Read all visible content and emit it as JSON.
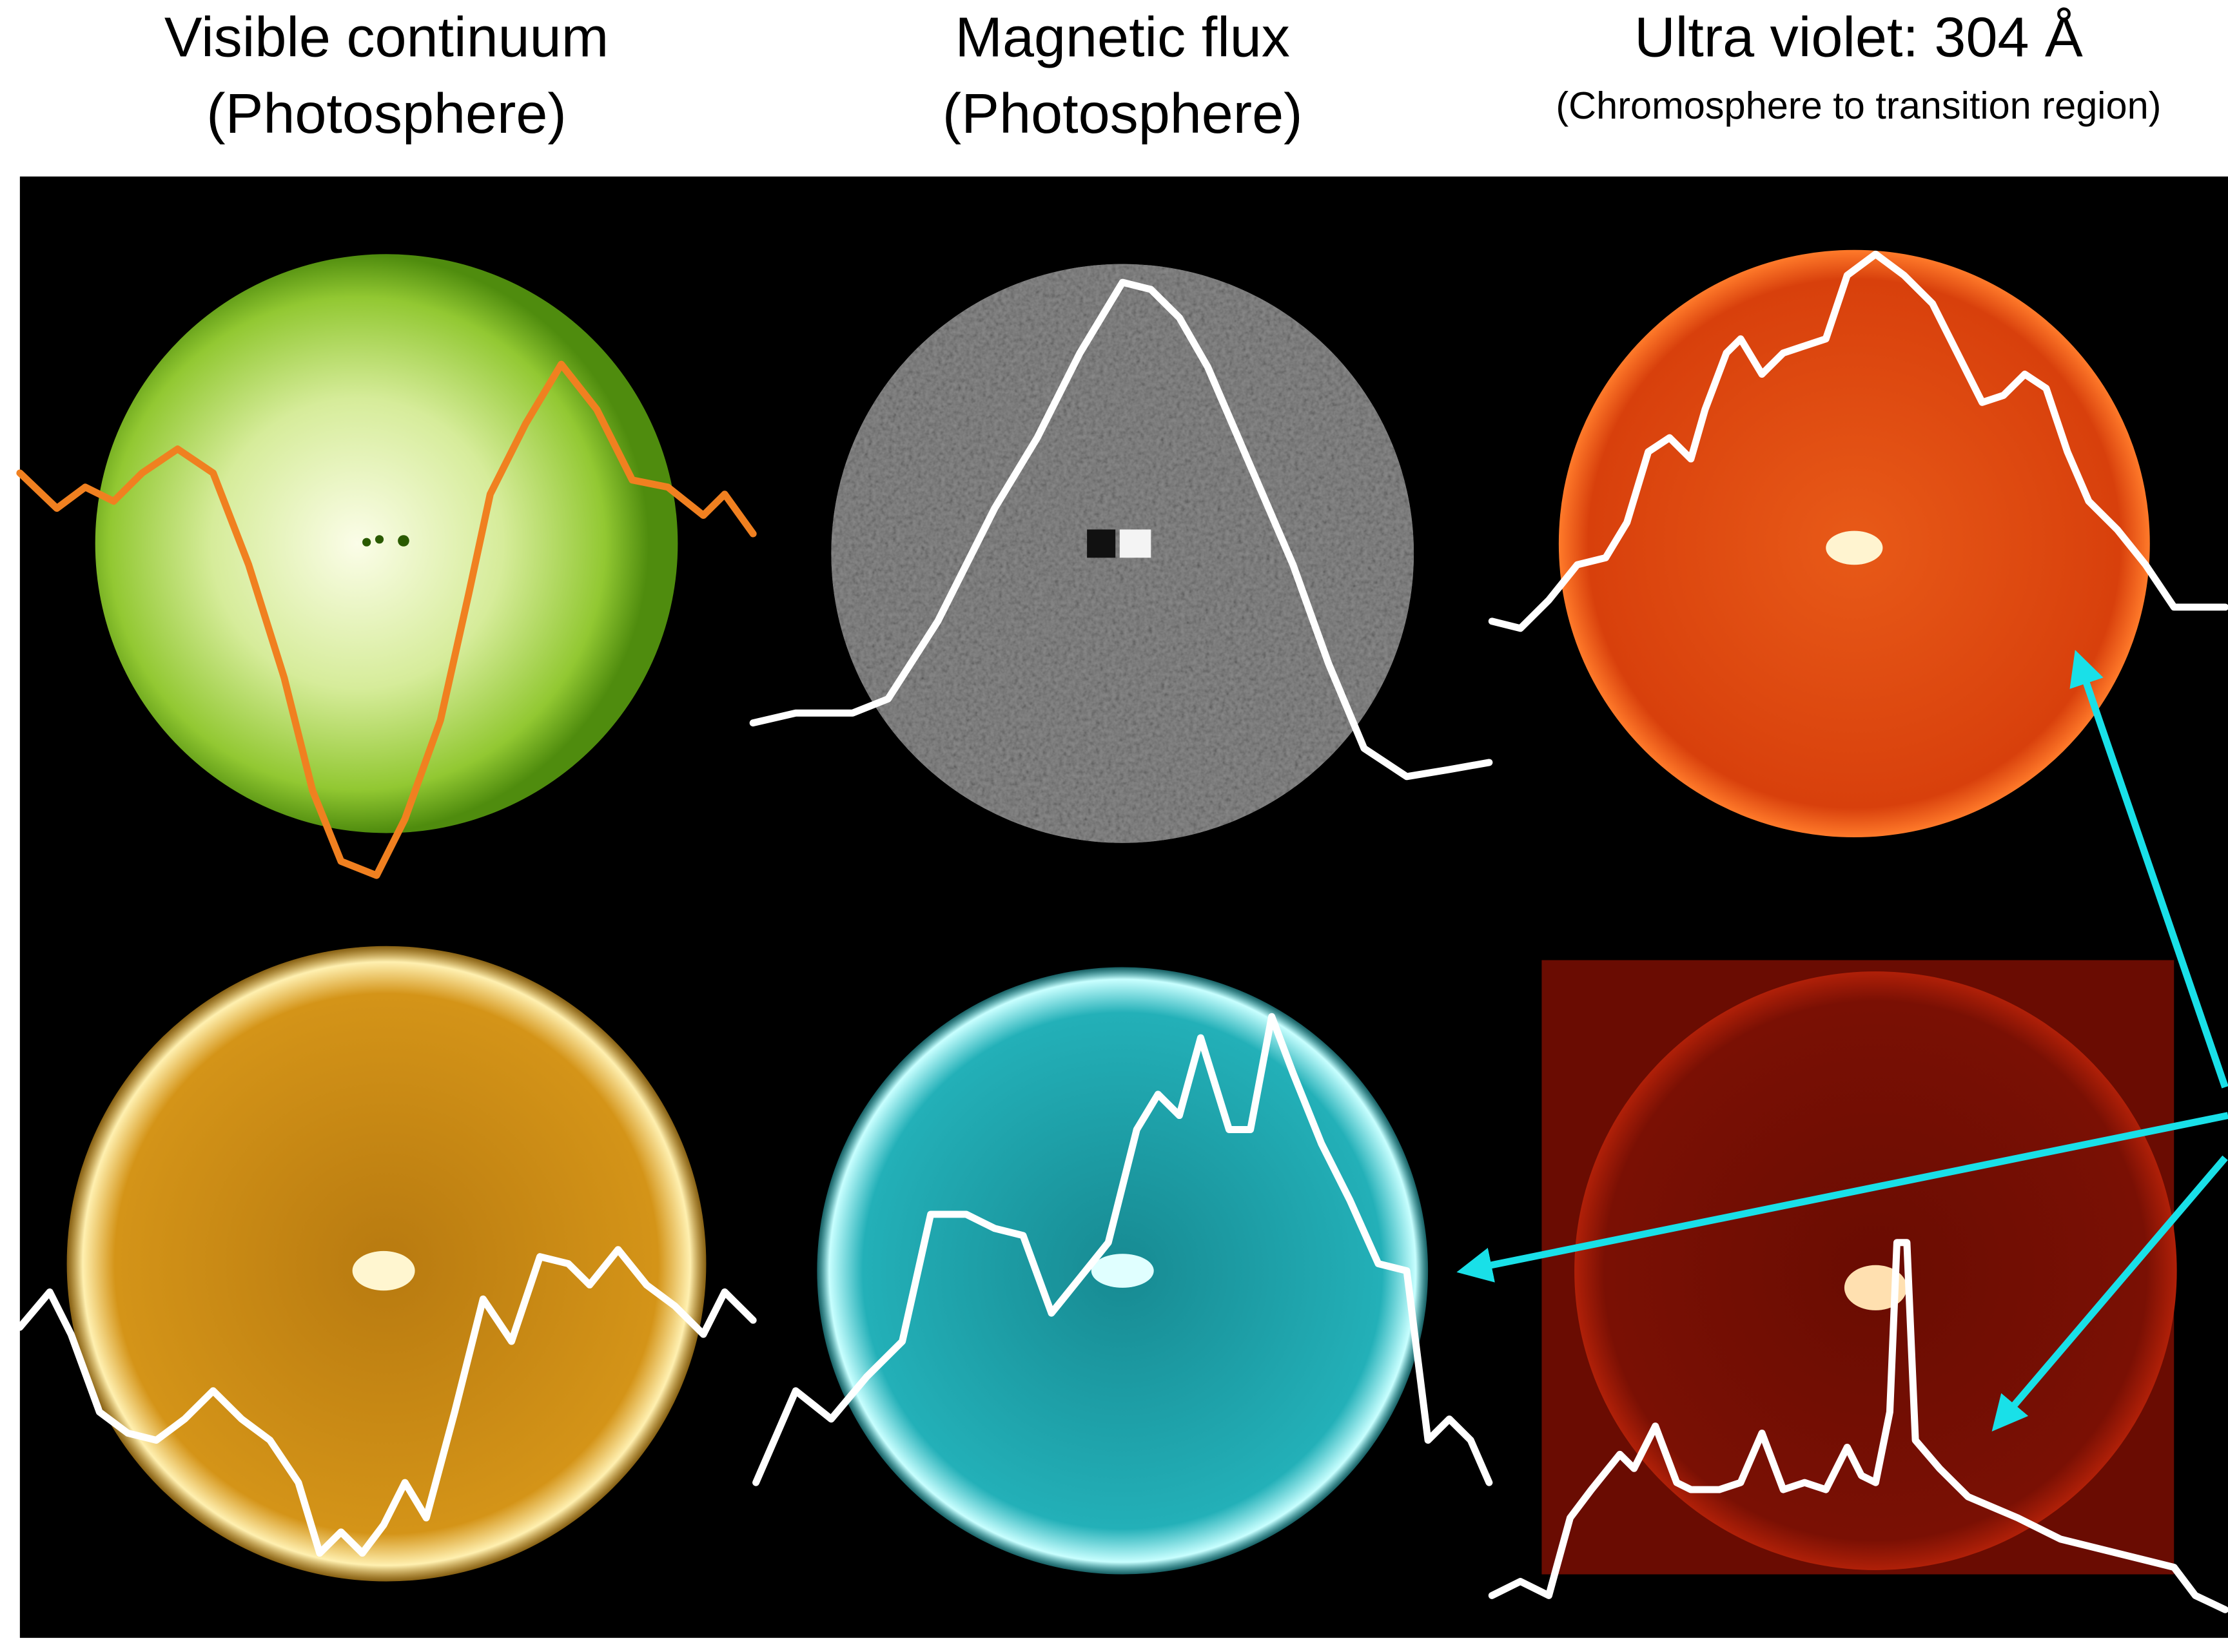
{
  "panels": [
    {
      "title": "Visible continuum",
      "subtitle": "(Photosphere)"
    },
    {
      "title": "Magnetic flux",
      "subtitle": "(Photosphere)"
    },
    {
      "title": "Ultra violet: 304 Å",
      "subtitle": "(Chromosphere to transition region)"
    }
  ]
}
